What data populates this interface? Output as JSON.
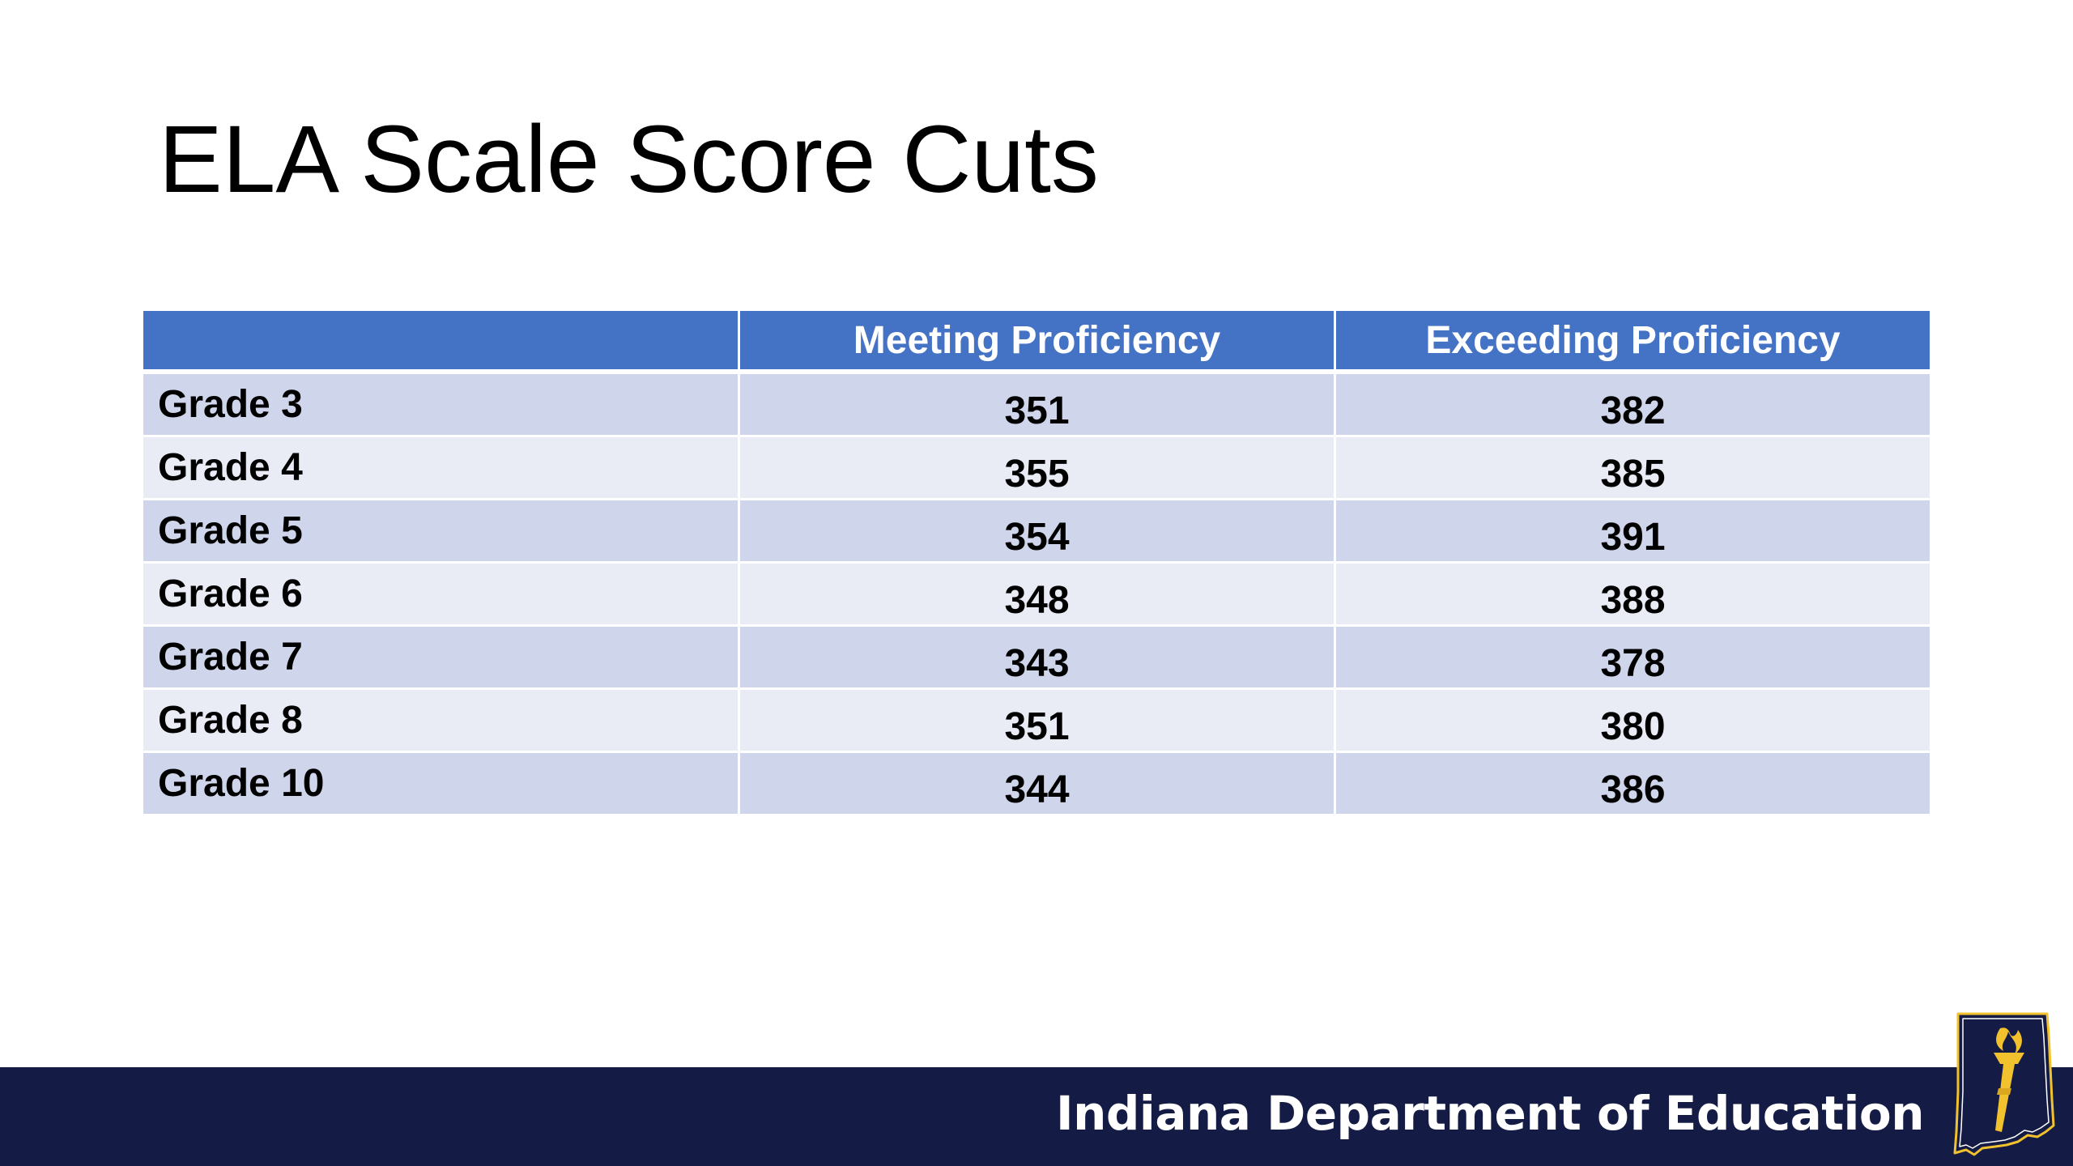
{
  "slide": {
    "title": "ELA Scale Score Cuts"
  },
  "table": {
    "headers": [
      "",
      "Meeting Proficiency",
      "Exceeding Proficiency"
    ],
    "rows": [
      {
        "grade": "Grade 3",
        "meeting": "351",
        "exceeding": "382"
      },
      {
        "grade": "Grade 4",
        "meeting": "355",
        "exceeding": "385"
      },
      {
        "grade": "Grade 5",
        "meeting": "354",
        "exceeding": "391"
      },
      {
        "grade": "Grade 6",
        "meeting": "348",
        "exceeding": "388"
      },
      {
        "grade": "Grade 7",
        "meeting": "343",
        "exceeding": "378"
      },
      {
        "grade": "Grade 8",
        "meeting": "351",
        "exceeding": "380"
      },
      {
        "grade": "Grade 10",
        "meeting": "344",
        "exceeding": "386"
      }
    ]
  },
  "footer": {
    "organization": "Indiana Department of Education",
    "logo_icon": "indiana-torch-logo"
  },
  "colors": {
    "header_bg": "#4472c4",
    "row_dark": "#cfd5ea",
    "row_light": "#e9ebf5",
    "footer_bg": "#141c45",
    "logo_gold": "#f2c12e"
  }
}
